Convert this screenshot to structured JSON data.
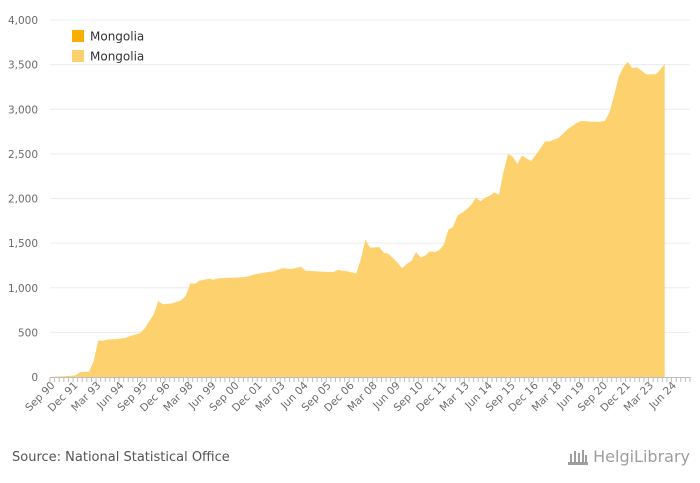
{
  "chart_data": {
    "type": "area",
    "title": "",
    "xlabel": "",
    "ylabel": "",
    "ylim": [
      0,
      4000
    ],
    "yticks": [
      0,
      500,
      1000,
      1500,
      2000,
      2500,
      3000,
      3500,
      4000
    ],
    "ytick_labels": [
      "0",
      "500",
      "1,000",
      "1,500",
      "2,000",
      "2,500",
      "3,000",
      "3,500",
      "4,000"
    ],
    "x_quarters_total": 139,
    "xtick_labels": [
      "Sep 90",
      "Dec 91",
      "Mar 93",
      "Jun 94",
      "Sep 95",
      "Dec 96",
      "Mar 98",
      "Jun 99",
      "Sep 00",
      "Dec 01",
      "Mar 03",
      "Jun 04",
      "Sep 05",
      "Dec 06",
      "Mar 08",
      "Jun 09",
      "Sep 10",
      "Dec 11",
      "Mar 13",
      "Jun 14",
      "Sep 15",
      "Dec 16",
      "Mar 18",
      "Jun 19",
      "Sep 20",
      "Dec 21",
      "Mar 23",
      "Jun 24"
    ],
    "grid": true,
    "legend_position": "top-left",
    "series": [
      {
        "name": "Mongolia",
        "color": "#FAAF00",
        "points": []
      },
      {
        "name": "Mongolia",
        "color": "#FDD26E",
        "points": [
          [
            0,
            2
          ],
          [
            3,
            10
          ],
          [
            5,
            18
          ],
          [
            6,
            55
          ],
          [
            8,
            60
          ],
          [
            9,
            180
          ],
          [
            10,
            410
          ],
          [
            11,
            405
          ],
          [
            12,
            420
          ],
          [
            14,
            425
          ],
          [
            16,
            440
          ],
          [
            17,
            460
          ],
          [
            19,
            490
          ],
          [
            20,
            540
          ],
          [
            22,
            700
          ],
          [
            23,
            850
          ],
          [
            24,
            815
          ],
          [
            26,
            825
          ],
          [
            28,
            860
          ],
          [
            29,
            910
          ],
          [
            30,
            1050
          ],
          [
            31,
            1045
          ],
          [
            32,
            1080
          ],
          [
            34,
            1100
          ],
          [
            35,
            1090
          ],
          [
            36,
            1105
          ],
          [
            38,
            1110
          ],
          [
            40,
            1115
          ],
          [
            42,
            1120
          ],
          [
            44,
            1150
          ],
          [
            46,
            1170
          ],
          [
            48,
            1185
          ],
          [
            50,
            1220
          ],
          [
            52,
            1210
          ],
          [
            54,
            1235
          ],
          [
            55,
            1190
          ],
          [
            57,
            1185
          ],
          [
            59,
            1180
          ],
          [
            61,
            1175
          ],
          [
            62,
            1200
          ],
          [
            64,
            1185
          ],
          [
            66,
            1160
          ],
          [
            67,
            1320
          ],
          [
            68,
            1540
          ],
          [
            69,
            1450
          ],
          [
            71,
            1455
          ],
          [
            72,
            1390
          ],
          [
            73,
            1380
          ],
          [
            74,
            1330
          ],
          [
            75,
            1280
          ],
          [
            76,
            1220
          ],
          [
            77,
            1270
          ],
          [
            78,
            1300
          ],
          [
            79,
            1400
          ],
          [
            80,
            1340
          ],
          [
            81,
            1360
          ],
          [
            82,
            1410
          ],
          [
            83,
            1400
          ],
          [
            84,
            1420
          ],
          [
            85,
            1480
          ],
          [
            86,
            1650
          ],
          [
            87,
            1680
          ],
          [
            88,
            1810
          ],
          [
            89,
            1840
          ],
          [
            90,
            1880
          ],
          [
            91,
            1930
          ],
          [
            92,
            2010
          ],
          [
            93,
            1970
          ],
          [
            94,
            2010
          ],
          [
            95,
            2030
          ],
          [
            96,
            2070
          ],
          [
            97,
            2040
          ],
          [
            98,
            2300
          ],
          [
            99,
            2500
          ],
          [
            100,
            2470
          ],
          [
            101,
            2390
          ],
          [
            102,
            2480
          ],
          [
            103,
            2450
          ],
          [
            104,
            2420
          ],
          [
            105,
            2490
          ],
          [
            106,
            2560
          ],
          [
            107,
            2640
          ],
          [
            108,
            2640
          ],
          [
            109,
            2660
          ],
          [
            110,
            2680
          ],
          [
            112,
            2780
          ],
          [
            114,
            2850
          ],
          [
            115,
            2870
          ],
          [
            117,
            2860
          ],
          [
            119,
            2860
          ],
          [
            120,
            2870
          ],
          [
            121,
            2960
          ],
          [
            122,
            3150
          ],
          [
            123,
            3360
          ],
          [
            124,
            3470
          ],
          [
            125,
            3530
          ],
          [
            126,
            3460
          ],
          [
            127,
            3470
          ],
          [
            128,
            3430
          ],
          [
            129,
            3390
          ],
          [
            130,
            3390
          ],
          [
            131,
            3390
          ],
          [
            132,
            3440
          ],
          [
            133,
            3510
          ]
        ]
      }
    ]
  },
  "footer": {
    "source": "Source: National Statistical Office",
    "brand": "HelgiLibrary"
  }
}
